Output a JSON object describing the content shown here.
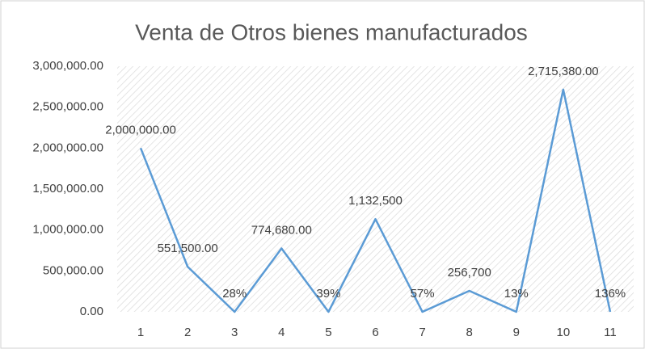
{
  "chart_data": {
    "type": "line",
    "title": "Venta de Otros bienes manufacturados",
    "categories": [
      "1",
      "2",
      "3",
      "4",
      "5",
      "6",
      "7",
      "8",
      "9",
      "10",
      "11"
    ],
    "series": [
      {
        "color": "#5b9bd5",
        "values": [
          2000000,
          551500,
          0.28,
          774680,
          0.39,
          1132500,
          0.57,
          256700,
          0.13,
          2715380,
          1.36
        ],
        "value_labels": [
          "2,000,000.00",
          "551,500.00",
          "28%",
          "774,680.00",
          "39%",
          "1,132,500",
          "57%",
          "256,700",
          "13%",
          "2,715,380.00",
          "136%"
        ]
      }
    ],
    "ylim": [
      0,
      3000000
    ],
    "yticks": [
      {
        "value": 0,
        "label": "0.00"
      },
      {
        "value": 500000,
        "label": "500,000.00"
      },
      {
        "value": 1000000,
        "label": "1,000,000.00"
      },
      {
        "value": 1500000,
        "label": "1,500,000.00"
      },
      {
        "value": 2000000,
        "label": "2,000,000.00"
      },
      {
        "value": 2500000,
        "label": "2,500,000.00"
      },
      {
        "value": 3000000,
        "label": "3,000,000.00"
      }
    ],
    "grid": false
  }
}
